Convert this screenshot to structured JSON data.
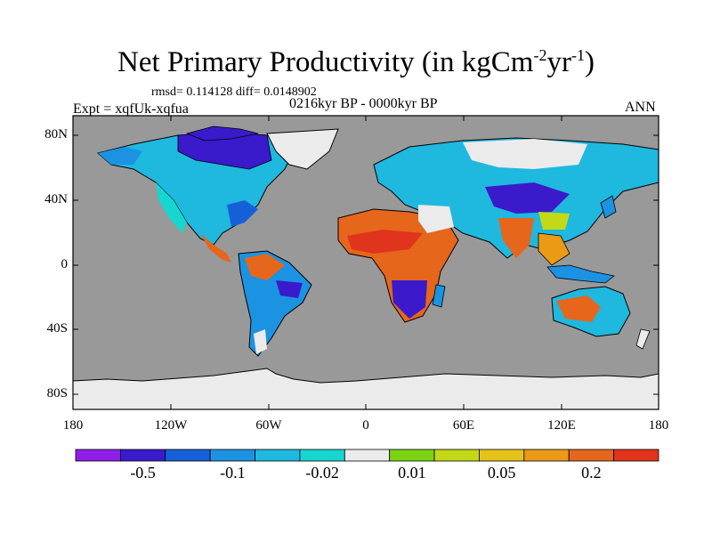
{
  "title": {
    "main": "Net Primary Productivity (in kgCm",
    "sup1": "-2",
    "mid": "yr",
    "sup2": "-1",
    "end": ")"
  },
  "stats_line": "rmsd= 0.114128 diff= 0.0148902",
  "expt_label": "Expt = xqfUk-xqfua",
  "period_label": "0216kyr BP - 0000kyr BP",
  "season_label": "ANN",
  "map": {
    "ocean_color": "#999999",
    "ice_color": "#ebebeb",
    "y_ticks": [
      "80N",
      "40N",
      "0",
      "40S",
      "80S"
    ],
    "x_ticks": [
      "180",
      "120W",
      "60W",
      "0",
      "60E",
      "120E",
      "180"
    ]
  },
  "colorbar": {
    "colors": [
      "#8f1fe8",
      "#3b1acb",
      "#1560d9",
      "#1b93e2",
      "#1fb8df",
      "#17d6d0",
      "#ebebeb",
      "#7ad414",
      "#c3d816",
      "#e6c31a",
      "#eb9a16",
      "#e6661c",
      "#e0341c"
    ],
    "labels": [
      "-0.5",
      "-0.1",
      "-0.02",
      "0.01",
      "0.05",
      "0.2"
    ]
  },
  "colors": {
    "strong_negative": "#3b1acb",
    "negative": "#1b93e2",
    "slight_negative": "#17d6d0",
    "neutral": "#ebebeb",
    "slight_positive": "#c3d816",
    "positive": "#eb9a16",
    "strong_positive": "#e0341c"
  }
}
